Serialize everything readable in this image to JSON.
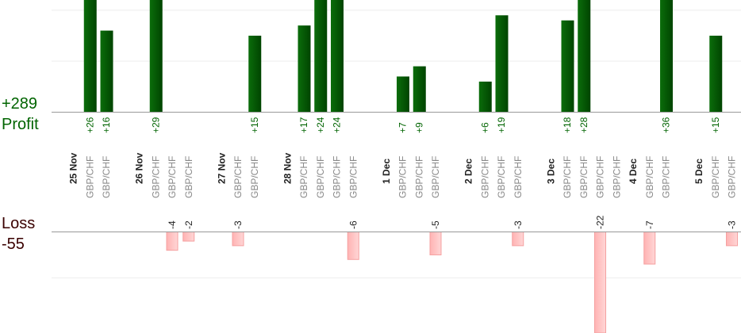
{
  "summary": {
    "profit_total": "+289",
    "profit_label": "Profit",
    "loss_label": "Loss",
    "loss_total": "-55"
  },
  "profit_axis": {
    "ylim": [
      0,
      22
    ],
    "yticks": [
      10,
      20
    ]
  },
  "loss_axis": {
    "ylim": [
      0,
      -22
    ],
    "yticks": [
      -10
    ]
  },
  "days": [
    {
      "date": "25 Nov",
      "trades": [
        {
          "symbol": "GBP/CHF",
          "profit": 26,
          "profit_label": "+26"
        },
        {
          "symbol": "GBP/CHF",
          "profit": 16,
          "profit_label": "+16"
        }
      ]
    },
    {
      "date": "26 Nov",
      "trades": [
        {
          "symbol": "GBP/CHF",
          "profit": 29,
          "profit_label": "+29"
        },
        {
          "symbol": "GBP/CHF",
          "loss": -4
        },
        {
          "symbol": "GBP/CHF",
          "loss": -2
        }
      ]
    },
    {
      "date": "27 Nov",
      "trades": [
        {
          "symbol": "GBP/CHF",
          "loss": -3
        },
        {
          "symbol": "GBP/CHF",
          "profit": 15,
          "profit_label": "+15"
        }
      ]
    },
    {
      "date": "28 Nov",
      "trades": [
        {
          "symbol": "GBP/CHF",
          "profit": 17,
          "profit_label": "+17"
        },
        {
          "symbol": "GBP/CHF",
          "profit": 24,
          "profit_label": "+24"
        },
        {
          "symbol": "GBP/CHF",
          "profit": 24,
          "profit_label": "+24"
        },
        {
          "symbol": "GBP/CHF",
          "loss": -6
        }
      ]
    },
    {
      "date": "1 Dec",
      "trades": [
        {
          "symbol": "GBP/CHF",
          "profit": 7,
          "profit_label": "+7"
        },
        {
          "symbol": "GBP/CHF",
          "profit": 9,
          "profit_label": "+9"
        },
        {
          "symbol": "GBP/CHF",
          "loss": -5
        }
      ]
    },
    {
      "date": "2 Dec",
      "trades": [
        {
          "symbol": "GBP/CHF",
          "profit": 6,
          "profit_label": "+6"
        },
        {
          "symbol": "GBP/CHF",
          "profit": 19,
          "profit_label": "+19"
        },
        {
          "symbol": "GBP/CHF",
          "loss": -3
        }
      ]
    },
    {
      "date": "3 Dec",
      "trades": [
        {
          "symbol": "GBP/CHF",
          "profit": 18,
          "profit_label": "+18"
        },
        {
          "symbol": "GBP/CHF",
          "profit": 28,
          "profit_label": "+28"
        },
        {
          "symbol": "GBP/CHF",
          "loss": -22
        },
        {
          "symbol": "GBP/CHF"
        }
      ]
    },
    {
      "date": "4 Dec",
      "trades": [
        {
          "symbol": "GBP/CHF",
          "loss": -7
        },
        {
          "symbol": "GBP/CHF",
          "profit": 36,
          "profit_label": "+36"
        }
      ]
    },
    {
      "date": "5 Dec",
      "trades": [
        {
          "symbol": "GBP/CHF",
          "profit": 15,
          "profit_label": "+15"
        },
        {
          "symbol": "GBP/CHF",
          "loss": -3
        }
      ]
    }
  ]
}
